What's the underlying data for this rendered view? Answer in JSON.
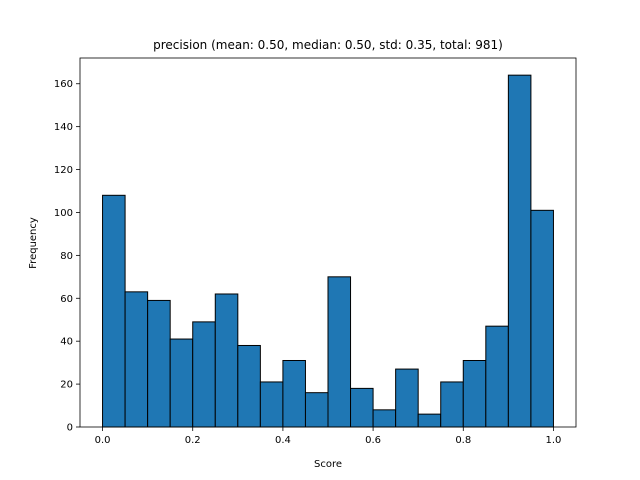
{
  "chart_data": {
    "type": "bar",
    "title": "precision (mean: 0.50, median: 0.50, std: 0.35, total: 981)",
    "xlabel": "Score",
    "ylabel": "Frequency",
    "bin_edges": [
      0.0,
      0.05,
      0.1,
      0.15,
      0.2,
      0.25,
      0.3,
      0.35,
      0.4,
      0.45,
      0.5,
      0.55,
      0.6,
      0.65,
      0.7,
      0.75,
      0.8,
      0.85,
      0.9,
      0.95,
      1.0
    ],
    "values": [
      108,
      63,
      59,
      41,
      49,
      62,
      38,
      21,
      31,
      16,
      70,
      18,
      8,
      27,
      6,
      21,
      31,
      47,
      164,
      101
    ],
    "xlim": [
      -0.05,
      1.05
    ],
    "ylim": [
      0,
      172
    ],
    "xticks": [
      0.0,
      0.2,
      0.4,
      0.6,
      0.8,
      1.0
    ],
    "xtick_labels": [
      "0.0",
      "0.2",
      "0.4",
      "0.6",
      "0.8",
      "1.0"
    ],
    "yticks": [
      0,
      20,
      40,
      60,
      80,
      100,
      120,
      140,
      160
    ],
    "ytick_labels": [
      "0",
      "20",
      "40",
      "60",
      "80",
      "100",
      "120",
      "140",
      "160"
    ],
    "bar_color": "#1f77b4",
    "edge_color": "#000000",
    "grid": false,
    "legend": "none"
  }
}
